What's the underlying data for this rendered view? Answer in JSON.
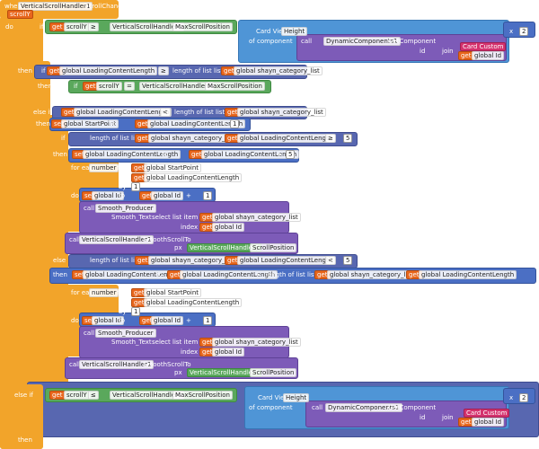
{
  "rows": [
    [
      "when",
      "VerticalScrollHandler1",
      "ScrollChanged"
    ],
    [
      "scrollY"
    ],
    [
      "do",
      "if",
      "get",
      "scrollY",
      "≥",
      "VerticalScrollHandler1",
      "MaxScrollPosition"
    ],
    [
      "Card View",
      "Height",
      "x",
      "2"
    ],
    [
      "of component",
      "call",
      "DynamicComponents1",
      "GetComponent"
    ],
    [
      "id",
      "join"
    ],
    [
      "Card Custom"
    ],
    [
      "get",
      "global Id"
    ],
    [
      "then",
      "if",
      "get",
      "global LoadingContentLength",
      "≥",
      "length of list list",
      "get",
      "global shayn_category_list"
    ],
    [
      "then",
      "if",
      "get",
      "scrollY",
      "=",
      "VerticalScrollHandler1",
      "MaxScrollPosition"
    ],
    [
      "then"
    ],
    [
      "else if",
      "get",
      "global LoadingContentLength",
      "<",
      "length of list list",
      "get",
      "global shayn_category_list"
    ],
    [
      "then",
      "set",
      "global StartPoint",
      "to",
      "get",
      "global LoadingContentLength",
      "+",
      "1"
    ],
    [
      "if",
      "length of list list",
      "get",
      "global shayn_category_list",
      "-",
      "get",
      "global LoadingContentLength",
      "≥",
      "5"
    ],
    [
      "then",
      "set",
      "global LoadingContentLength",
      "to",
      "get",
      "global LoadingContentLength",
      "+",
      "5"
    ],
    [
      "for each",
      "number",
      "from",
      "get",
      "global StartPoint"
    ],
    [
      "to",
      "get",
      "global LoadingContentLength"
    ],
    [
      "by",
      "1"
    ],
    [
      "do",
      "set",
      "global Id",
      "to",
      "get",
      "global Id",
      "+",
      "1"
    ],
    [
      "call",
      "Smooth_Producer"
    ],
    [
      "Smooth_Text",
      "select list item list",
      "get",
      "global shayn_category_list"
    ],
    [
      "index",
      "get",
      "global Id"
    ],
    [
      "call",
      "VerticalScrollHandler1",
      "SmoothScrollTo"
    ],
    [
      "px",
      "VerticalScrollHandler1",
      "ScrollPosition"
    ],
    [
      "else",
      "length of list list",
      "get",
      "global shayn_category_list",
      "-",
      "get",
      "global LoadingContentLength",
      "<",
      "5"
    ],
    [
      "then",
      "set",
      "global LoadingContentLength",
      "to",
      "get",
      "global LoadingContentLength",
      "+",
      "length of list list",
      "get",
      "global shayn_category_list",
      "-",
      "get",
      "global LoadingContentLength"
    ],
    [
      "for each",
      "number",
      "from",
      "get",
      "global StartPoint"
    ],
    [
      "to",
      "get",
      "global LoadingContentLength"
    ],
    [
      "by",
      "1"
    ],
    [
      "do",
      "set",
      "global Id",
      "to",
      "get",
      "global Id",
      "+",
      "1"
    ],
    [
      "call",
      "Smooth_Producer"
    ],
    [
      "Smooth_Text",
      "select list item list",
      "get",
      "global shayn_category_list"
    ],
    [
      "index",
      "get",
      "global Id"
    ],
    [
      "call",
      "VerticalScrollHandler1",
      "SmoothScrollTo"
    ],
    [
      "px",
      "VerticalScrollHandler1",
      "ScrollPosition"
    ],
    [
      "else if",
      "get",
      "scrollY",
      "≤",
      "VerticalScrollHandler1",
      "MaxScrollPosition"
    ],
    [
      "Card View",
      "Height",
      "x",
      "2"
    ],
    [
      "of component",
      "call",
      "DynamicComponents1",
      "GetComponent"
    ],
    [
      "id",
      "join"
    ],
    [
      "Card Custom"
    ],
    [
      "get",
      "global Id"
    ],
    [
      "then"
    ]
  ]
}
